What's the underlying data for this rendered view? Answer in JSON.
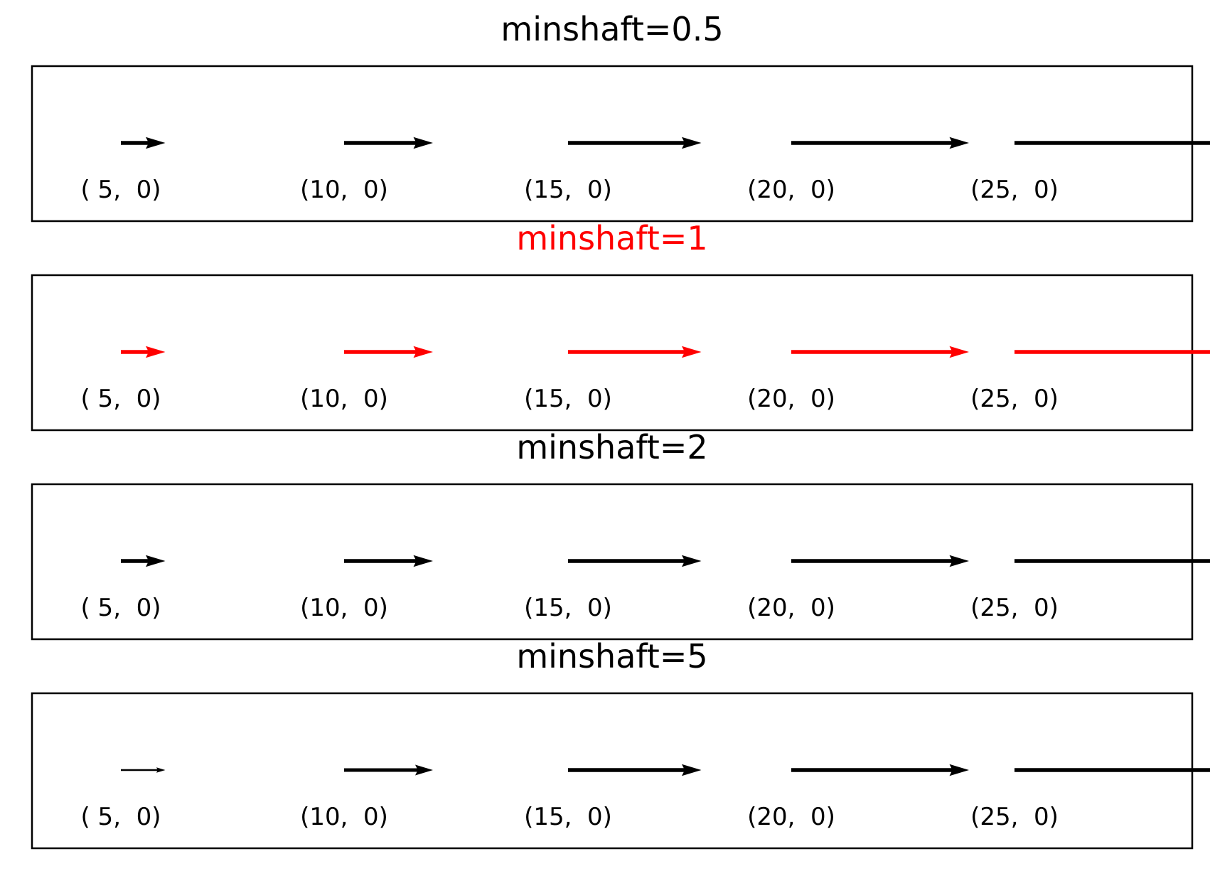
{
  "panels": [
    {
      "title": "minshaft=0.5",
      "color": "#000000",
      "minshaft": 0.5,
      "arrows": [
        {
          "label": "( 5,  0)",
          "u": 5,
          "v": 0
        },
        {
          "label": "(10,  0)",
          "u": 10,
          "v": 0
        },
        {
          "label": "(15,  0)",
          "u": 15,
          "v": 0
        },
        {
          "label": "(20,  0)",
          "u": 20,
          "v": 0
        },
        {
          "label": "(25,  0)",
          "u": 25,
          "v": 0
        }
      ]
    },
    {
      "title": "minshaft=1",
      "color": "#ff0000",
      "minshaft": 1,
      "arrows": [
        {
          "label": "( 5,  0)",
          "u": 5,
          "v": 0
        },
        {
          "label": "(10,  0)",
          "u": 10,
          "v": 0
        },
        {
          "label": "(15,  0)",
          "u": 15,
          "v": 0
        },
        {
          "label": "(20,  0)",
          "u": 20,
          "v": 0
        },
        {
          "label": "(25,  0)",
          "u": 25,
          "v": 0
        }
      ]
    },
    {
      "title": "minshaft=2",
      "color": "#000000",
      "minshaft": 2,
      "arrows": [
        {
          "label": "( 5,  0)",
          "u": 5,
          "v": 0
        },
        {
          "label": "(10,  0)",
          "u": 10,
          "v": 0
        },
        {
          "label": "(15,  0)",
          "u": 15,
          "v": 0
        },
        {
          "label": "(20,  0)",
          "u": 20,
          "v": 0
        },
        {
          "label": "(25,  0)",
          "u": 25,
          "v": 0
        }
      ]
    },
    {
      "title": "minshaft=5",
      "color": "#000000",
      "minshaft": 5,
      "arrows": [
        {
          "label": "( 5,  0)",
          "u": 5,
          "v": 0
        },
        {
          "label": "(10,  0)",
          "u": 10,
          "v": 0
        },
        {
          "label": "(15,  0)",
          "u": 15,
          "v": 0
        },
        {
          "label": "(20,  0)",
          "u": 20,
          "v": 0
        },
        {
          "label": "(25,  0)",
          "u": 25,
          "v": 0
        }
      ]
    }
  ]
}
